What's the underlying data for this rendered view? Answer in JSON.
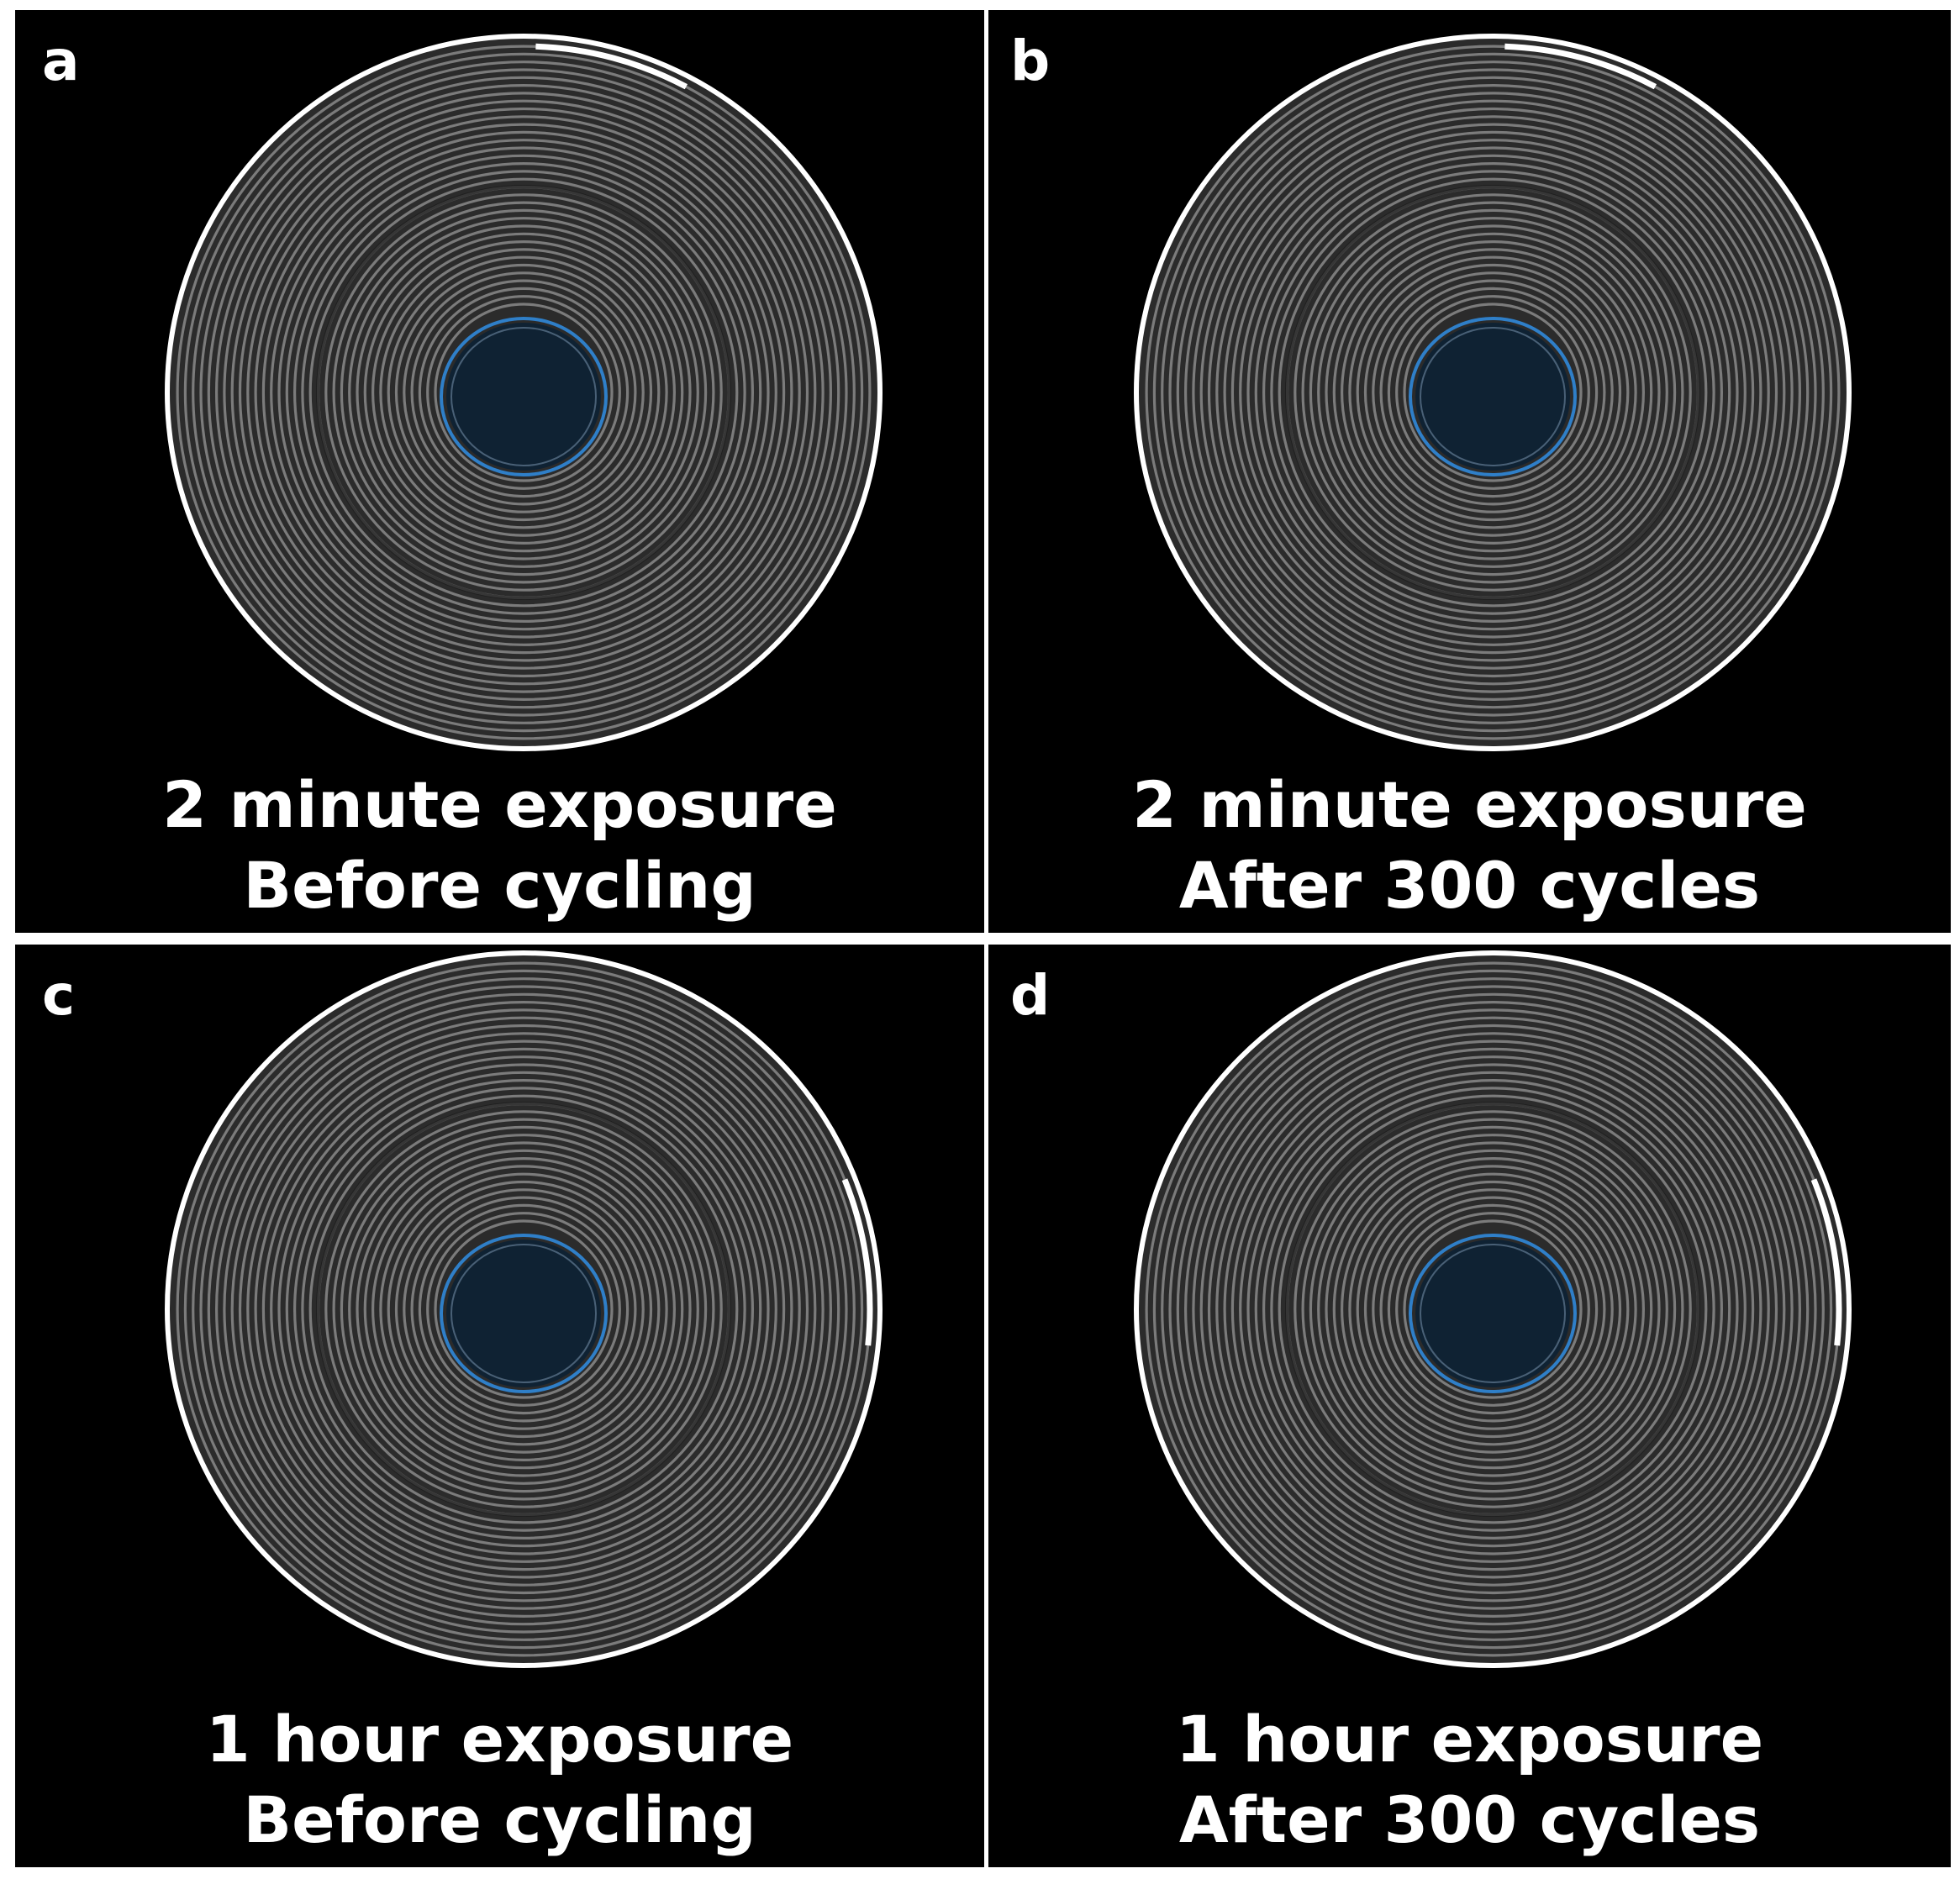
{
  "panels": [
    {
      "letter": "a",
      "line1": "2 minute exposure",
      "line2": "Before cycling"
    },
    {
      "letter": "b",
      "line1": "2 minute exposure",
      "line2": "After 300 cycles"
    },
    {
      "letter": "c",
      "line1": "1 hour exposure",
      "line2": "Before cycling"
    },
    {
      "letter": "d",
      "line1": "1 hour exposure",
      "line2": "After 300 cycles"
    }
  ],
  "colors": {
    "background": "#000000",
    "separator": "#ffffff",
    "winding": "#8a8a8a",
    "outer_can": "#ffffff",
    "core_outline": "#2f7fc8",
    "core_fill": "#0f2233",
    "caption_text": "#ffffff"
  }
}
